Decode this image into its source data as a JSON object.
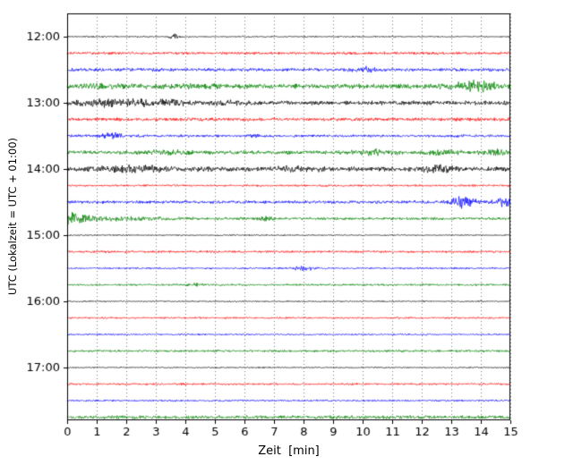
{
  "chart_data": {
    "type": "line",
    "subtype": "helicorder-seismogram",
    "title": "",
    "xlabel": "Zeit  [min]",
    "ylabel": "UTC (Lokalzeit = UTC + 01:00)",
    "x_range": [
      0,
      15
    ],
    "x_tick_labels": [
      "0",
      "1",
      "2",
      "3",
      "4",
      "5",
      "6",
      "7",
      "8",
      "9",
      "10",
      "11",
      "12",
      "13",
      "14",
      "15"
    ],
    "y_tick_labels": [
      "12:00",
      "13:00",
      "14:00",
      "15:00",
      "16:00",
      "17:00"
    ],
    "grid": "vertical-dotted",
    "legend": "none",
    "minutes_per_line": 15,
    "color_cycle": [
      "#000000",
      "#ff0000",
      "#0000ff",
      "#008000"
    ],
    "traces": [
      {
        "start": "12:00",
        "color": "#000000",
        "noise": 0.6,
        "events": [
          {
            "t": 3.6,
            "amp": 2.2,
            "w": 0.12
          }
        ]
      },
      {
        "start": "12:15",
        "color": "#ff0000",
        "noise": 1.2,
        "events": []
      },
      {
        "start": "12:30",
        "color": "#0000ff",
        "noise": 1.4,
        "events": [
          {
            "t": 10.1,
            "amp": 2.5,
            "w": 0.25
          }
        ]
      },
      {
        "start": "12:45",
        "color": "#008000",
        "noise": 2.2,
        "events": [
          {
            "t": 1.3,
            "amp": 1.2,
            "w": 0.6
          },
          {
            "t": 4.3,
            "amp": 1.2,
            "w": 0.4
          },
          {
            "t": 13.8,
            "amp": 4.0,
            "w": 0.5
          }
        ]
      },
      {
        "start": "13:00",
        "color": "#000000",
        "noise": 1.9,
        "events": [
          {
            "t": 1.2,
            "amp": 2.0,
            "w": 1.0
          },
          {
            "t": 3.0,
            "amp": 1.5,
            "w": 0.8
          },
          {
            "t": 5.5,
            "amp": 1.0,
            "w": 0.5
          }
        ]
      },
      {
        "start": "13:15",
        "color": "#ff0000",
        "noise": 1.5,
        "events": []
      },
      {
        "start": "13:30",
        "color": "#0000ff",
        "noise": 1.2,
        "events": [
          {
            "t": 1.5,
            "amp": 2.2,
            "w": 0.25
          },
          {
            "t": 6.3,
            "amp": 1.8,
            "w": 0.12
          }
        ]
      },
      {
        "start": "13:45",
        "color": "#008000",
        "noise": 1.7,
        "events": [
          {
            "t": 3.5,
            "amp": 1.5,
            "w": 0.5
          },
          {
            "t": 10.4,
            "amp": 1.5,
            "w": 0.5
          },
          {
            "t": 12.7,
            "amp": 1.5,
            "w": 0.4
          },
          {
            "t": 14.5,
            "amp": 2.0,
            "w": 0.3
          }
        ]
      },
      {
        "start": "14:00",
        "color": "#000000",
        "noise": 2.1,
        "events": [
          {
            "t": 2.5,
            "amp": 2.0,
            "w": 1.0
          },
          {
            "t": 7.8,
            "amp": 1.2,
            "w": 0.5
          },
          {
            "t": 12.6,
            "amp": 2.0,
            "w": 0.4
          }
        ]
      },
      {
        "start": "14:15",
        "color": "#ff0000",
        "noise": 0.9,
        "events": []
      },
      {
        "start": "14:30",
        "color": "#0000ff",
        "noise": 1.3,
        "events": [
          {
            "t": 13.4,
            "amp": 4.5,
            "w": 0.3
          },
          {
            "t": 14.75,
            "amp": 4.5,
            "w": 0.25
          }
        ]
      },
      {
        "start": "14:45",
        "color": "#008000",
        "noise": 1.2,
        "events": [
          {
            "t": 0.0,
            "amp": 5.5,
            "w": 0.45
          },
          {
            "t": 1.5,
            "amp": 1.0,
            "w": 1.5
          },
          {
            "t": 6.8,
            "amp": 1.5,
            "w": 0.2
          }
        ]
      },
      {
        "start": "15:00",
        "color": "#000000",
        "noise": 0.55,
        "events": []
      },
      {
        "start": "15:15",
        "color": "#ff0000",
        "noise": 1.0,
        "events": []
      },
      {
        "start": "15:30",
        "color": "#0000ff",
        "noise": 0.8,
        "events": [
          {
            "t": 8.0,
            "amp": 1.5,
            "w": 0.25
          }
        ]
      },
      {
        "start": "15:45",
        "color": "#008000",
        "noise": 0.9,
        "events": [
          {
            "t": 4.3,
            "amp": 1.8,
            "w": 0.15
          }
        ]
      },
      {
        "start": "16:00",
        "color": "#000000",
        "noise": 0.55,
        "events": []
      },
      {
        "start": "16:15",
        "color": "#ff0000",
        "noise": 0.8,
        "events": []
      },
      {
        "start": "16:30",
        "color": "#0000ff",
        "noise": 0.7,
        "events": []
      },
      {
        "start": "16:45",
        "color": "#008000",
        "noise": 1.0,
        "events": []
      },
      {
        "start": "17:00",
        "color": "#000000",
        "noise": 0.55,
        "events": []
      },
      {
        "start": "17:15",
        "color": "#ff0000",
        "noise": 0.9,
        "events": []
      },
      {
        "start": "17:30",
        "color": "#0000ff",
        "noise": 0.8,
        "events": []
      },
      {
        "start": "17:45",
        "color": "#008000",
        "noise": 1.5,
        "events": []
      }
    ]
  }
}
